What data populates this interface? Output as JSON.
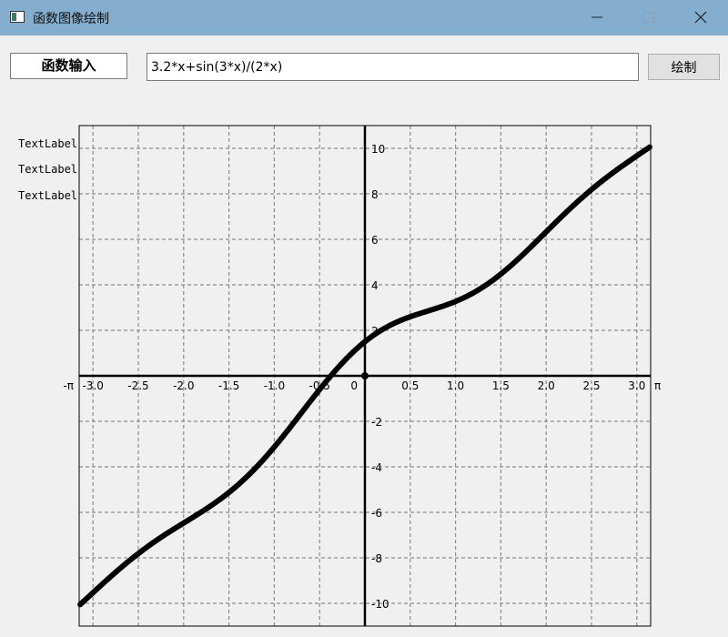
{
  "window": {
    "title": "函数图像绘制",
    "icons": {
      "app": "app-window-icon",
      "minimize": "minimize-icon",
      "maximize": "maximize-icon",
      "close": "close-icon"
    }
  },
  "toolbar": {
    "input_label": "函数输入",
    "function_value": "3.2*x+sin(3*x)/(2*x)",
    "draw_label": "绘制"
  },
  "text_labels": [
    "TextLabel",
    "TextLabel",
    "TextLabel"
  ],
  "chart_data": {
    "type": "line",
    "expression": "3.2*x+sin(3*x)/(2*x)",
    "xlim": [
      -3.14159,
      3.14159
    ],
    "ylim": [
      -11,
      11
    ],
    "x_ticks": [
      {
        "v": -3.14159,
        "label": "-π"
      },
      {
        "v": -3.0,
        "label": "-3.0"
      },
      {
        "v": -2.5,
        "label": "-2.5"
      },
      {
        "v": -2.0,
        "label": "-2.0"
      },
      {
        "v": -1.5,
        "label": "-1.5"
      },
      {
        "v": -1.0,
        "label": "-1.0"
      },
      {
        "v": -0.5,
        "label": "-0.5"
      },
      {
        "v": 0,
        "label": "0"
      },
      {
        "v": 0.5,
        "label": "0.5"
      },
      {
        "v": 1.0,
        "label": "1.0"
      },
      {
        "v": 1.5,
        "label": "1.5"
      },
      {
        "v": 2.0,
        "label": "2.0"
      },
      {
        "v": 2.5,
        "label": "2.5"
      },
      {
        "v": 3.0,
        "label": "3.0"
      },
      {
        "v": 3.14159,
        "label": "π"
      }
    ],
    "y_ticks": [
      {
        "v": 10,
        "label": "10"
      },
      {
        "v": 8,
        "label": "8"
      },
      {
        "v": 6,
        "label": "6"
      },
      {
        "v": 4,
        "label": "4"
      },
      {
        "v": 2,
        "label": "2"
      },
      {
        "v": -2,
        "label": "-2"
      },
      {
        "v": -4,
        "label": "-4"
      },
      {
        "v": -6,
        "label": "-6"
      },
      {
        "v": -8,
        "label": "-8"
      },
      {
        "v": -10,
        "label": "-10"
      }
    ],
    "x_grid": [
      -3.0,
      -2.5,
      -2.0,
      -1.5,
      -1.0,
      -0.5,
      0.5,
      1.0,
      1.5,
      2.0,
      2.5,
      3.0
    ],
    "y_grid": [
      -10,
      -8,
      -6,
      -4,
      -2,
      2,
      4,
      6,
      8,
      10
    ],
    "grid": true,
    "colors": {
      "line": "#000000",
      "grid": "#8c8c8c",
      "axis": "#000000"
    }
  }
}
